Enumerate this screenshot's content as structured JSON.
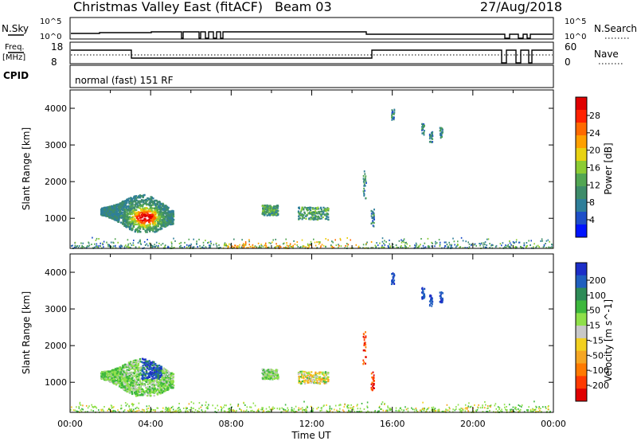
{
  "header": {
    "station": "Christmas Valley East (fitACF)",
    "beam": "Beam 03",
    "date": "27/Aug/2018"
  },
  "params": {
    "nsky_label": "N.Sky",
    "nsky_ticks": [
      "10^5",
      "10^0"
    ],
    "nsearch_label": "N.Search",
    "nsearch_ticks": [
      "10^5",
      "10^0"
    ],
    "freq_label": [
      "Freq.",
      "[MHz]"
    ],
    "freq_ticks": [
      "18",
      "8"
    ],
    "nave_label": "Nave",
    "nave_ticks": [
      "60",
      "0"
    ],
    "cpid_label": "CPID",
    "cpid_value": "normal (fast) 151 RF"
  },
  "chart_data": [
    {
      "type": "heatmap",
      "name": "power",
      "ylabel": "Slant Range [km]",
      "xlabel": "Time UT",
      "xlim_hours": [
        0,
        24
      ],
      "ylim_km": [
        180,
        4500
      ],
      "y_ticks": [
        1000,
        2000,
        3000,
        4000
      ],
      "x_tick_labels": [
        "00:00",
        "04:00",
        "08:00",
        "12:00",
        "16:00",
        "20:00",
        "00:00"
      ],
      "colorbar": {
        "label": "Power [dB]",
        "ticks": [
          "4",
          "8",
          "12",
          "16",
          "20",
          "24",
          "28"
        ],
        "colors": [
          "#0014ff",
          "#1e4fc8",
          "#2f7f9a",
          "#3e8c6a",
          "#52a653",
          "#8ccc33",
          "#e8d212",
          "#ffa000",
          "#ff6a00",
          "#ff2200",
          "#e00000"
        ]
      },
      "features": [
        {
          "desc": "main echo",
          "t_start": 1.5,
          "t_end": 5.0,
          "range_km": [
            700,
            1700
          ]
        },
        {
          "desc": "patch",
          "t_start": 9.5,
          "t_end": 10.3,
          "range_km": [
            1100,
            1350
          ]
        },
        {
          "desc": "patch",
          "t_start": 11.3,
          "t_end": 12.8,
          "range_km": [
            1000,
            1300
          ]
        },
        {
          "desc": "far echoes",
          "t_start": 17.3,
          "t_end": 18.6,
          "range_km": [
            3000,
            3600
          ]
        },
        {
          "desc": "ground scatter band",
          "t_start": 0,
          "t_end": 24,
          "range_km": [
            180,
            450
          ]
        }
      ]
    },
    {
      "type": "heatmap",
      "name": "velocity",
      "ylabel": "Slant Range [km]",
      "xlabel": "Time UT",
      "xlim_hours": [
        0,
        24
      ],
      "ylim_km": [
        180,
        4500
      ],
      "y_ticks": [
        1000,
        2000,
        3000,
        4000
      ],
      "x_tick_labels": [
        "00:00",
        "04:00",
        "08:00",
        "12:00",
        "16:00",
        "20:00",
        "00:00"
      ],
      "colorbar": {
        "label": "Velocity [m s^-1]",
        "ticks": [
          "200",
          "100",
          "50",
          "15",
          "-15",
          "-50",
          "-100",
          "-200"
        ],
        "colors": [
          "#1c2ec8",
          "#1f5fbf",
          "#2e8b57",
          "#3db83d",
          "#8fe04a",
          "#c8c8c8",
          "#f2d020",
          "#f5a623",
          "#ff7a00",
          "#ff3a00",
          "#e00000"
        ]
      }
    }
  ]
}
